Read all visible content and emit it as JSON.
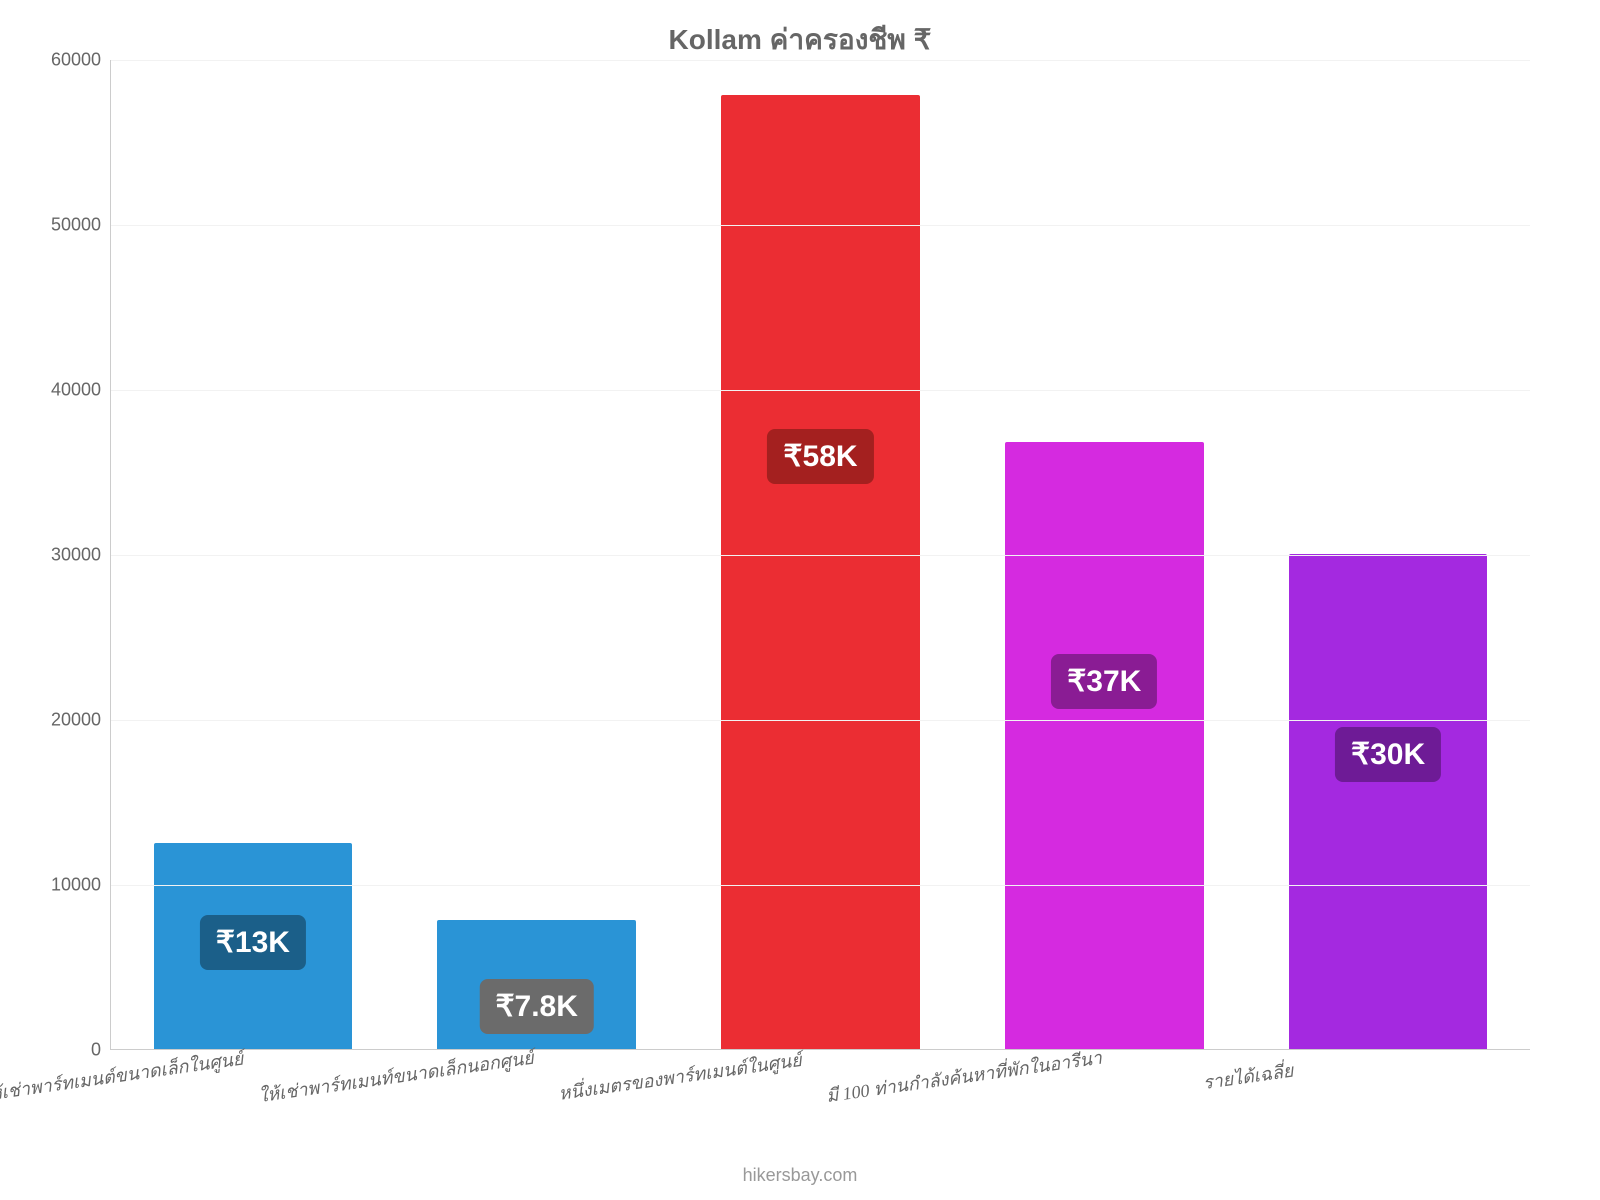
{
  "chart": {
    "type": "bar",
    "title": "Kollam ค่าครองชีพ ₹",
    "title_fontsize": 28,
    "title_color": "#666666",
    "background_color": "#ffffff",
    "grid_color": "#f2f2f2",
    "axis_color": "#cccccc",
    "ylim": [
      0,
      60000
    ],
    "ytick_step": 10000,
    "yticks": [
      "0",
      "10000",
      "20000",
      "30000",
      "40000",
      "50000",
      "60000"
    ],
    "ytick_fontsize": 18,
    "bar_width_pct": 70,
    "categories": [
      "ให้เช่าพาร์ทเมนต์ขนาดเล็กในศูนย์",
      "ให้เช่าพาร์ทเมนท์ขนาดเล็กนอกศูนย์",
      "หนึ่งเมตรของพาร์ทเมนต์ในศูนย์",
      "มี 100 ท่านกำลังค้นหาที่พักในอารีนา",
      "รายได้เฉลี่ย"
    ],
    "values": [
      12500,
      7800,
      57800,
      36800,
      30000
    ],
    "value_labels": [
      "₹13K",
      "₹7.8K",
      "₹58K",
      "₹37K",
      "₹30K"
    ],
    "bar_colors": [
      "#2a94d6",
      "#2a94d6",
      "#eb2d33",
      "#d52ae0",
      "#a429e0"
    ],
    "badge_bg_colors": [
      "#1b5f89",
      "#6b6b6b",
      "#a4201f",
      "#8a1c94",
      "#6e1b96"
    ],
    "badge_text_color": "#ffffff",
    "badge_fontsize": 30,
    "xlabel_fontsize": 18,
    "xlabel_color": "#666666",
    "xlabel_rotate_deg": -8
  },
  "credit": "hikersbay.com",
  "credit_fontsize": 18,
  "credit_color": "#999999"
}
